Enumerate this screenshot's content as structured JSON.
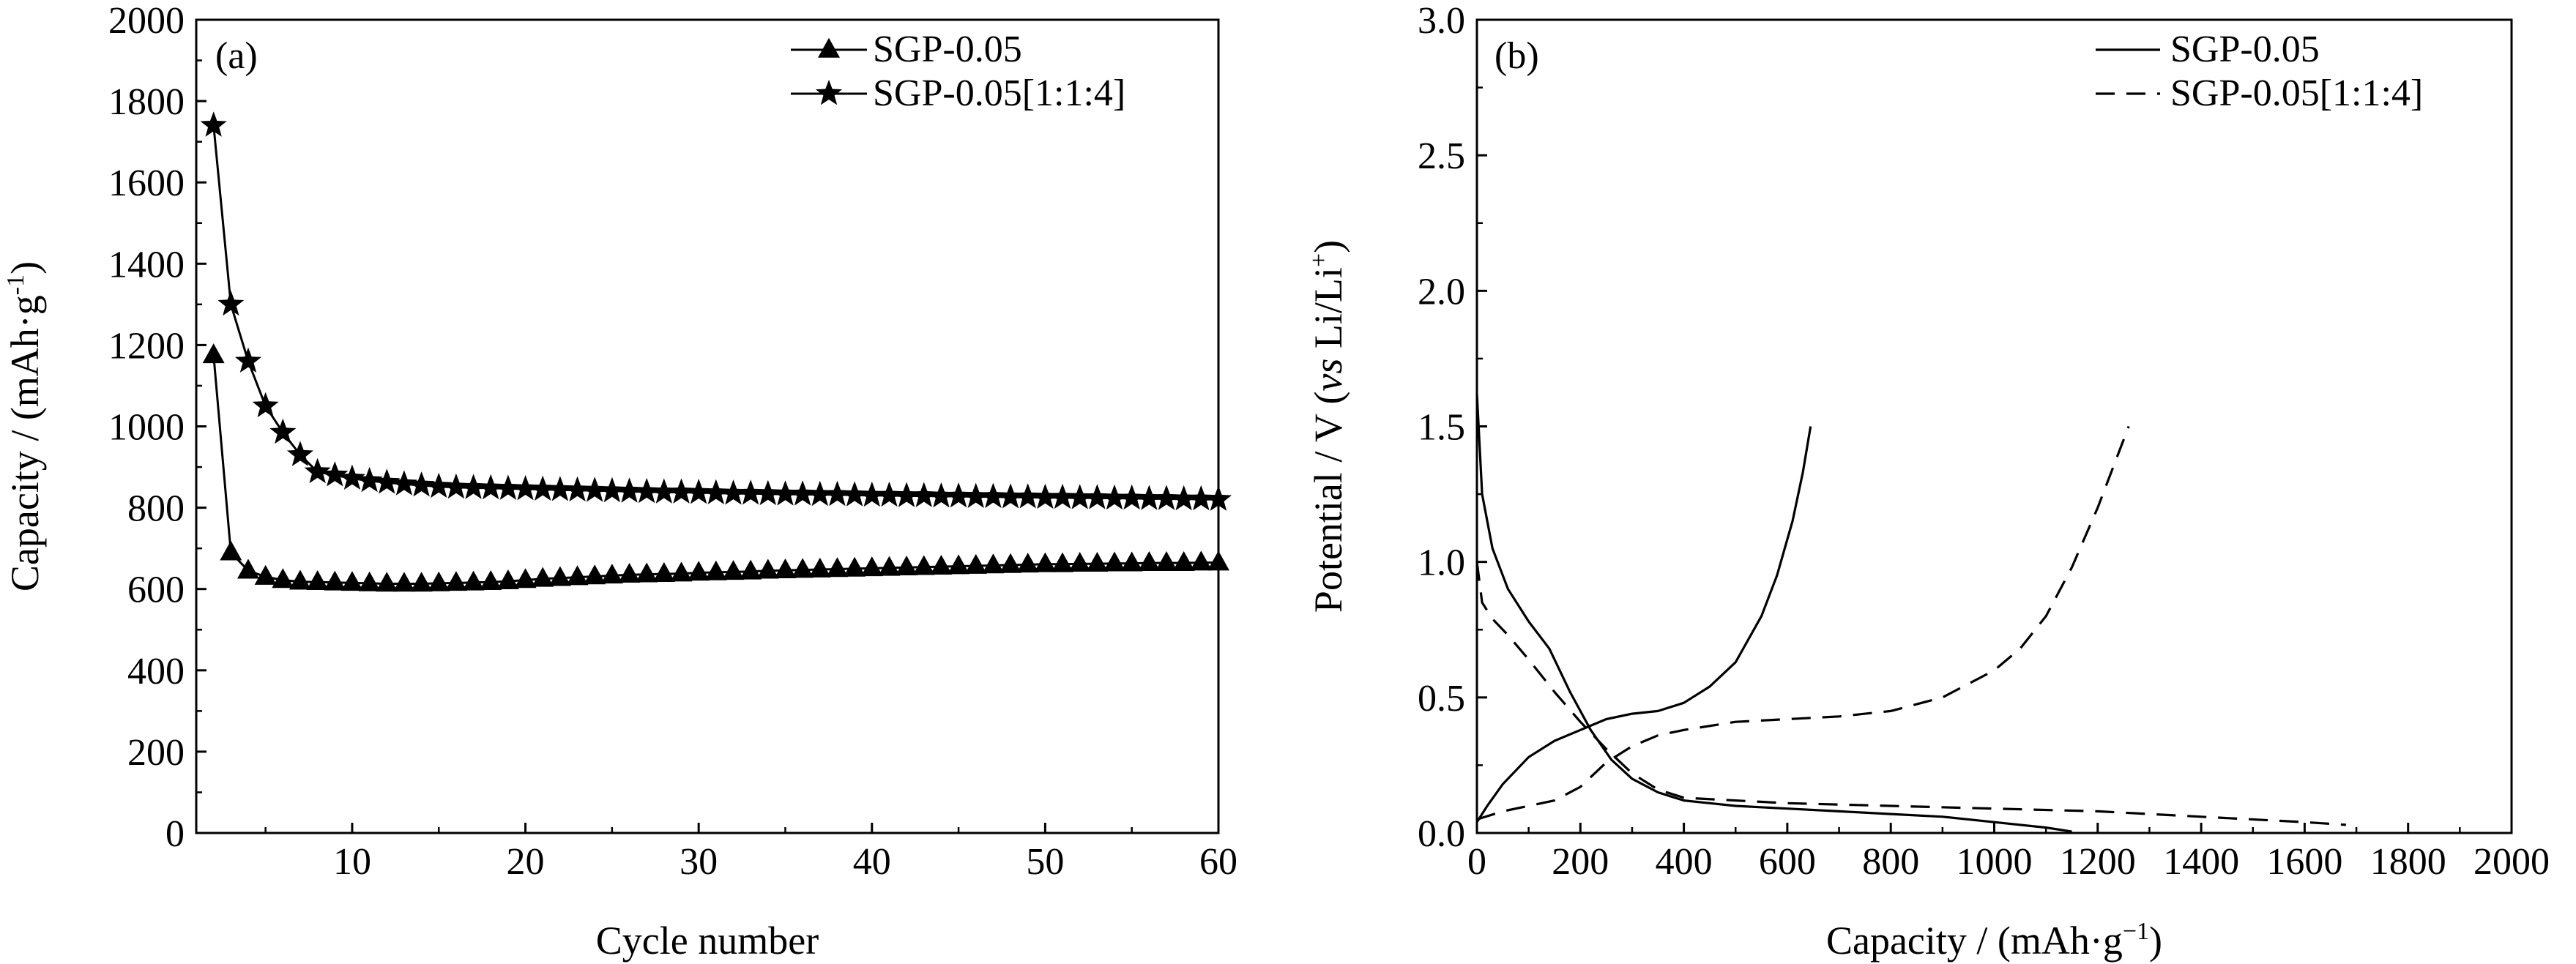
{
  "chart_data": [
    {
      "type": "line",
      "panel_label": "(a)",
      "xlabel": "Cycle  number",
      "ylabel": "Capacity / (mAh·g",
      "ylabel_sup": "-1",
      "ylabel_close": ")",
      "xlim": [
        1,
        60
      ],
      "ylim": [
        0,
        2000
      ],
      "xticks": [
        10,
        20,
        30,
        40,
        50,
        60
      ],
      "yticks": [
        0,
        200,
        400,
        600,
        800,
        1000,
        1200,
        1400,
        1600,
        1800,
        2000
      ],
      "legend_position": "top-right",
      "series": [
        {
          "name": "SGP-0.05",
          "marker": "triangle",
          "x": [
            2,
            3,
            4,
            5,
            6,
            7,
            8,
            9,
            10,
            11,
            12,
            13,
            14,
            15,
            16,
            17,
            18,
            19,
            20,
            21,
            22,
            23,
            24,
            25,
            26,
            27,
            28,
            29,
            30,
            31,
            32,
            33,
            34,
            35,
            36,
            37,
            38,
            39,
            40,
            41,
            42,
            43,
            44,
            45,
            46,
            47,
            48,
            49,
            50,
            51,
            52,
            53,
            54,
            55,
            56,
            57,
            58,
            59,
            60
          ],
          "y": [
            1175,
            690,
            645,
            630,
            622,
            618,
            617,
            616,
            615,
            614,
            613,
            613,
            613,
            614,
            615,
            616,
            617,
            619,
            622,
            625,
            627,
            629,
            631,
            633,
            635,
            636,
            637,
            638,
            640,
            641,
            642,
            643,
            645,
            646,
            647,
            648,
            649,
            650,
            651,
            652,
            653,
            654,
            655,
            656,
            657,
            658,
            659,
            660,
            661,
            661,
            662,
            662,
            663,
            663,
            664,
            664,
            664,
            665,
            665
          ]
        },
        {
          "name": "SGP-0.05[1:1:4]",
          "marker": "star",
          "x": [
            2,
            3,
            4,
            5,
            6,
            7,
            8,
            9,
            10,
            11,
            12,
            13,
            14,
            15,
            16,
            17,
            18,
            19,
            20,
            21,
            22,
            23,
            24,
            25,
            26,
            27,
            28,
            29,
            30,
            31,
            32,
            33,
            34,
            35,
            36,
            37,
            38,
            39,
            40,
            41,
            42,
            43,
            44,
            45,
            46,
            47,
            48,
            49,
            50,
            51,
            52,
            53,
            54,
            55,
            56,
            57,
            58,
            59,
            60
          ],
          "y": [
            1740,
            1300,
            1160,
            1050,
            985,
            930,
            888,
            880,
            872,
            866,
            862,
            858,
            855,
            852,
            850,
            849,
            848,
            847,
            846,
            845,
            844,
            843,
            842,
            841,
            840,
            839,
            838,
            838,
            837,
            836,
            835,
            835,
            834,
            833,
            833,
            832,
            832,
            831,
            830,
            830,
            829,
            829,
            828,
            828,
            827,
            827,
            826,
            826,
            825,
            825,
            824,
            824,
            823,
            823,
            822,
            822,
            821,
            821,
            820
          ]
        }
      ]
    },
    {
      "type": "line",
      "panel_label": "(b)",
      "xlabel": "Capacity / (mAh·g",
      "xlabel_sup": "−1",
      "xlabel_close": ")",
      "ylabel": "Potential / V (",
      "ylabel_italic": "vs",
      "ylabel_rest": " Li/Li",
      "ylabel_sup": "+",
      "ylabel_close": ")",
      "xlim": [
        0,
        2000
      ],
      "ylim": [
        0,
        3.0
      ],
      "xticks": [
        0,
        200,
        400,
        600,
        800,
        1000,
        1200,
        1400,
        1600,
        1800,
        2000
      ],
      "yticks": [
        0.0,
        0.5,
        1.0,
        1.5,
        2.0,
        2.5,
        3.0
      ],
      "ytick_labels": [
        "0.0",
        "0.5",
        "1.0",
        "1.5",
        "2.0",
        "2.5",
        "3.0"
      ],
      "legend_position": "top-right",
      "series": [
        {
          "name": "SGP-0.05",
          "style": "solid",
          "curves": [
            {
              "x": [
                0,
                10,
                30,
                60,
                100,
                140,
                180,
                220,
                260,
                300,
                350,
                400,
                450,
                500,
                600,
                700,
                800,
                900,
                1000,
                1100,
                1150
              ],
              "y": [
                1.62,
                1.25,
                1.05,
                0.9,
                0.78,
                0.68,
                0.52,
                0.38,
                0.27,
                0.2,
                0.15,
                0.12,
                0.11,
                0.1,
                0.09,
                0.08,
                0.07,
                0.06,
                0.04,
                0.02,
                0.005
              ]
            },
            {
              "x": [
                0,
                20,
                50,
                100,
                150,
                200,
                250,
                300,
                350,
                400,
                450,
                500,
                550,
                580,
                610,
                630,
                645
              ],
              "y": [
                0.04,
                0.1,
                0.18,
                0.28,
                0.34,
                0.38,
                0.42,
                0.44,
                0.45,
                0.48,
                0.54,
                0.63,
                0.8,
                0.95,
                1.15,
                1.33,
                1.5
              ]
            }
          ]
        },
        {
          "name": "SGP-0.05[1:1:4]",
          "style": "dashed",
          "curves": [
            {
              "x": [
                0,
                10,
                30,
                60,
                100,
                150,
                200,
                250,
                300,
                350,
                400,
                500,
                600,
                800,
                1000,
                1200,
                1400,
                1600,
                1680
              ],
              "y": [
                1.0,
                0.85,
                0.79,
                0.73,
                0.64,
                0.52,
                0.41,
                0.31,
                0.22,
                0.16,
                0.13,
                0.12,
                0.11,
                0.1,
                0.09,
                0.08,
                0.06,
                0.04,
                0.03
              ]
            },
            {
              "x": [
                0,
                50,
                100,
                150,
                200,
                250,
                300,
                350,
                400,
                500,
                600,
                700,
                800,
                900,
                1000,
                1050,
                1100,
                1150,
                1200,
                1230,
                1250,
                1260
              ],
              "y": [
                0.05,
                0.08,
                0.1,
                0.12,
                0.17,
                0.26,
                0.32,
                0.36,
                0.38,
                0.41,
                0.42,
                0.43,
                0.45,
                0.5,
                0.6,
                0.68,
                0.8,
                0.98,
                1.2,
                1.35,
                1.45,
                1.5
              ]
            }
          ]
        }
      ]
    }
  ]
}
